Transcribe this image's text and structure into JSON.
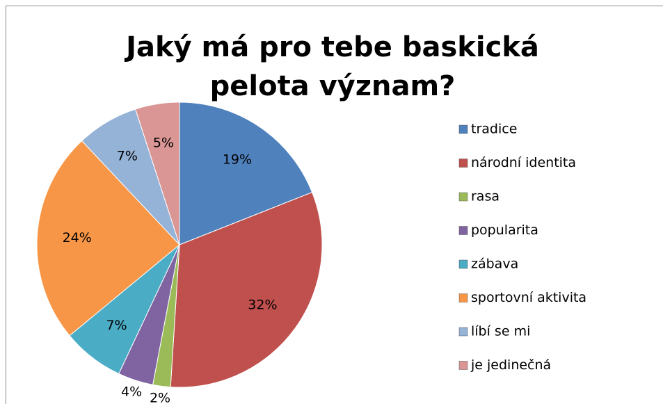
{
  "chart_data": {
    "type": "pie",
    "title": "Jaký má pro tebe baskická pelota význam?",
    "categories": [
      "tradice",
      "národní identita",
      "rasa",
      "popularita",
      "zábava",
      "sportovní aktivita",
      "líbí se mi",
      "je jedinečná"
    ],
    "values": [
      19,
      32,
      2,
      4,
      7,
      24,
      7,
      5
    ],
    "value_labels": [
      "19%",
      "32%",
      "2%",
      "4%",
      "7%",
      "24%",
      "7%",
      "5%"
    ],
    "colors": [
      "#4f81bd",
      "#c0504d",
      "#9bbb59",
      "#8064a2",
      "#4bacc6",
      "#f79646",
      "#95b3d7",
      "#d99694"
    ],
    "legend": "right"
  }
}
